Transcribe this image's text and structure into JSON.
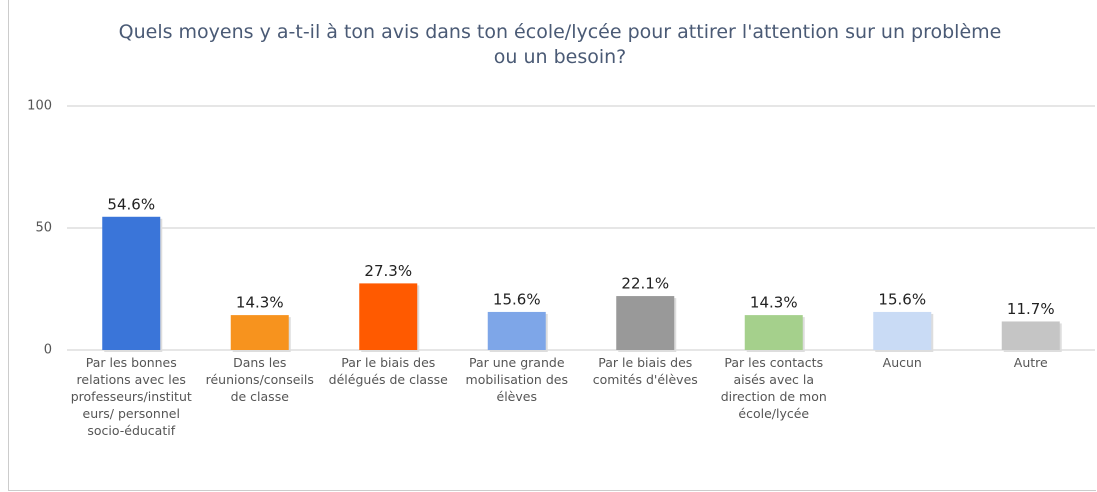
{
  "chart_data": {
    "type": "bar",
    "title": "Quels moyens y a-t-il à ton avis dans ton école/lycée pour attirer l'attention sur un problème ou un besoin?",
    "categories": [
      "Par les bonnes relations avec les professeurs/instituteurs/ personnel socio-éducatif",
      "Dans les réunions/conseils de classe",
      "Par le biais des délégués de classe",
      "Par une grande mobilisation des élèves",
      "Par le biais des comités d'élèves",
      "Par les contacts aisés avec la direction de mon école/lycée",
      "Aucun",
      "Autre"
    ],
    "values": [
      54.6,
      14.3,
      27.3,
      15.6,
      22.1,
      14.3,
      15.6,
      11.7
    ],
    "value_labels": [
      "54.6%",
      "14.3%",
      "27.3%",
      "15.6%",
      "22.1%",
      "14.3%",
      "15.6%",
      "11.7%"
    ],
    "colors": [
      "#3a75d9",
      "#f7931e",
      "#ff5a00",
      "#7ea6e8",
      "#999999",
      "#a5d08c",
      "#c9dbf5",
      "#c5c5c5"
    ],
    "ylim": [
      0,
      100
    ],
    "yticks": [
      0,
      50,
      100
    ],
    "grid": true
  }
}
